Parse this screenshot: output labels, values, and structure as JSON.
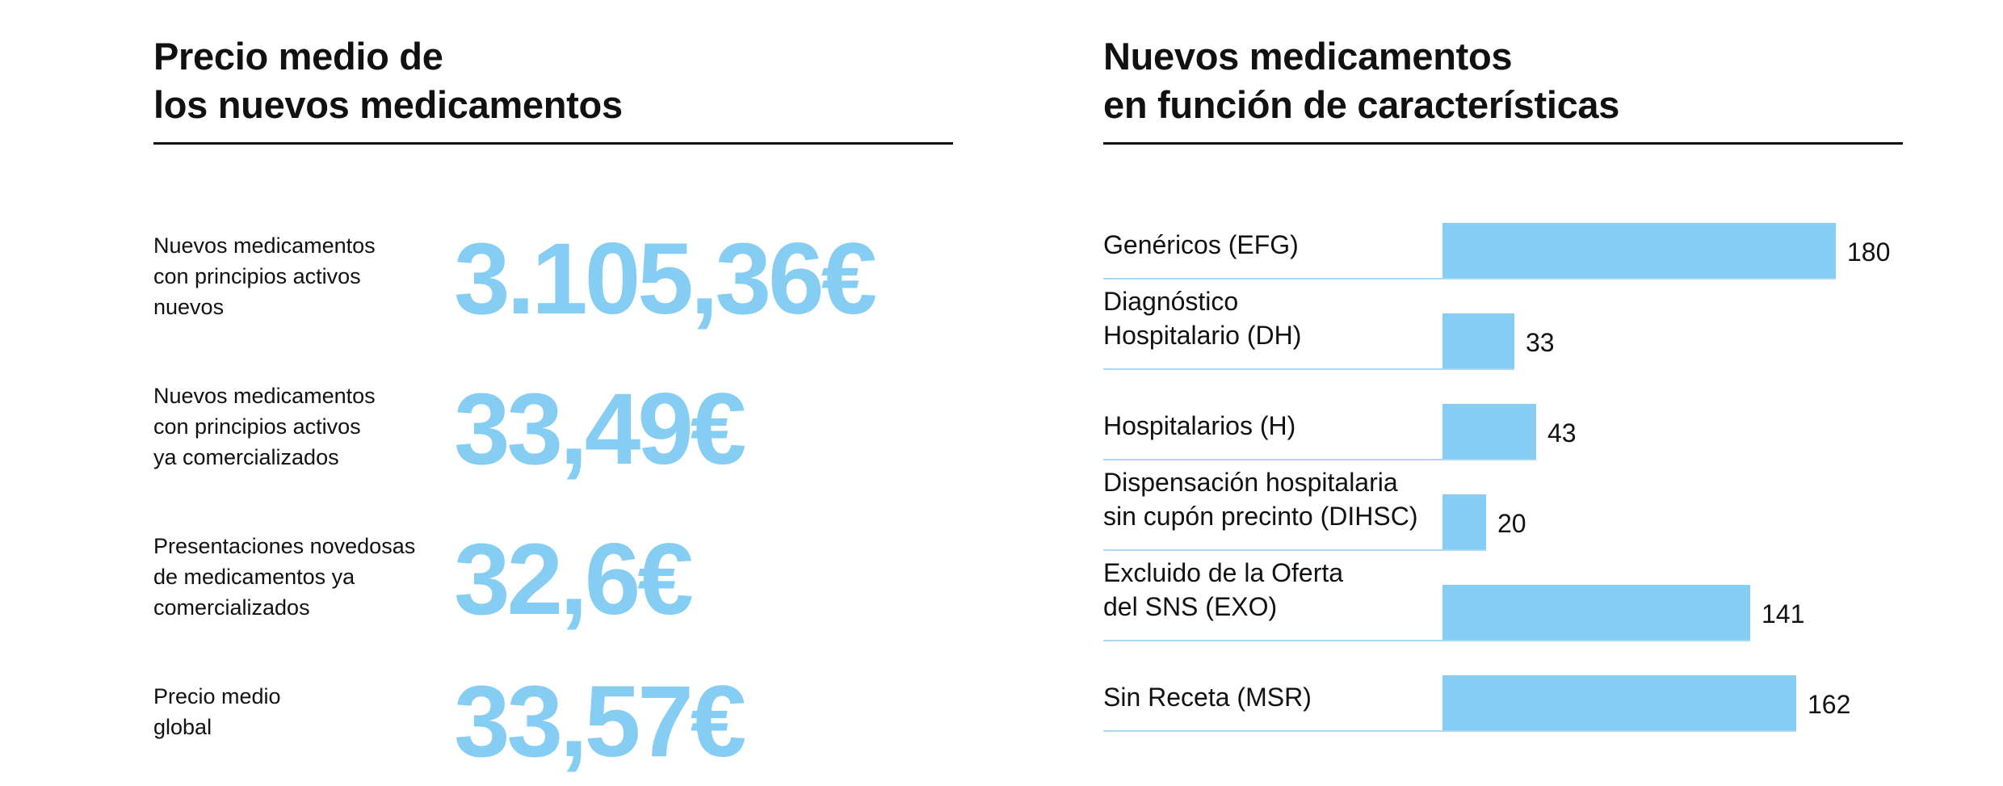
{
  "left": {
    "title_lines": [
      "Precio medio de",
      "los nuevos medicamentos"
    ],
    "rows": [
      {
        "label_lines": [
          "Nuevos medicamentos",
          "con principios activos",
          "nuevos"
        ],
        "value": "3.105,36€"
      },
      {
        "label_lines": [
          "Nuevos medicamentos",
          "con principios activos",
          "ya comercializados"
        ],
        "value": "33,49€"
      },
      {
        "label_lines": [
          "Presentaciones novedosas",
          "de medicamentos ya",
          "comercializados"
        ],
        "value": "32,6€"
      },
      {
        "label_lines": [
          "Precio medio",
          "global"
        ],
        "value": "33,57€"
      }
    ]
  },
  "right": {
    "title_lines": [
      "Nuevos medicamentos",
      "en función de características"
    ]
  },
  "colors": {
    "accent": "#86cdf3",
    "baseline": "#a8d8f2",
    "text": "#111111"
  },
  "chart_data": {
    "type": "bar",
    "orientation": "horizontal",
    "title": "Nuevos medicamentos en función de características",
    "categories": [
      "Genéricos (EFG)",
      "Diagnóstico Hospitalario (DH)",
      "Hospitalarios (H)",
      "Dispensación hospitalaria sin cupón precinto (DIHSC)",
      "Excluido de la Oferta del SNS (EXO)",
      "Sin Receta (MSR)"
    ],
    "category_lines": [
      [
        "Genéricos (EFG)"
      ],
      [
        "Diagnóstico",
        "Hospitalario (DH)"
      ],
      [
        "Hospitalarios (H)"
      ],
      [
        "Dispensación hospitalaria",
        "sin cupón precinto (DIHSC)"
      ],
      [
        "Excluido de la Oferta",
        "del SNS (EXO)"
      ],
      [
        "Sin Receta (MSR)"
      ]
    ],
    "values": [
      180,
      33,
      43,
      20,
      141,
      162
    ],
    "xlim": [
      0,
      180
    ],
    "value_labels": true
  }
}
